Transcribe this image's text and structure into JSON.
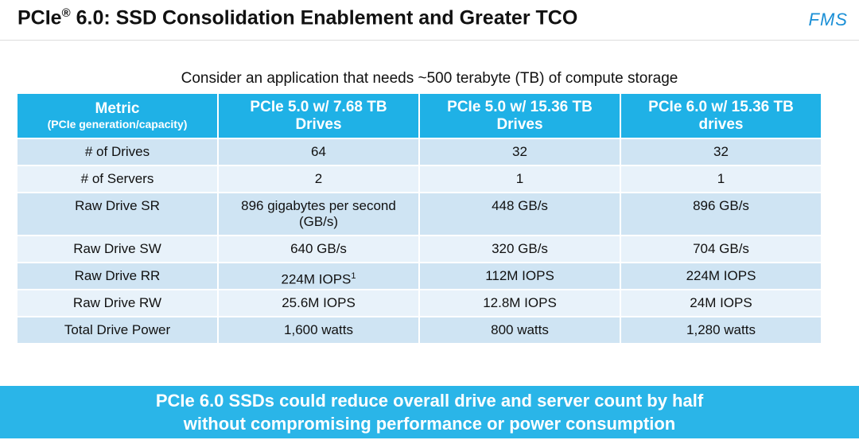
{
  "header": {
    "title": {
      "prefix": "PCIe",
      "mark": "®",
      "rest": " 6.0: SSD Consolidation Enablement and Greater TCO"
    },
    "logo": "FMS"
  },
  "subtitle": "Consider an application that needs ~500 terabyte (TB) of compute storage",
  "table": {
    "columns": [
      {
        "title": "Metric",
        "subtitle": "(PCIe generation/capacity)"
      },
      {
        "title": "PCIe 5.0 w/ 7.68 TB Drives"
      },
      {
        "title": "PCIe 5.0 w/ 15.36 TB Drives"
      },
      {
        "title": "PCIe 6.0 w/ 15.36 TB drives"
      }
    ],
    "rows": [
      [
        "# of Drives",
        "64",
        "32",
        "32"
      ],
      [
        "# of Servers",
        "2",
        "1",
        "1"
      ],
      [
        "Raw Drive SR",
        "896 gigabytes per second (GB/s)",
        "448 GB/s",
        "896 GB/s"
      ],
      [
        "Raw Drive SW",
        "640 GB/s",
        "320 GB/s",
        "704 GB/s"
      ],
      [
        "Raw Drive RR",
        {
          "text": "224M IOPS",
          "sup": "1"
        },
        "112M IOPS",
        "224M IOPS"
      ],
      [
        "Raw Drive RW",
        "25.6M IOPS",
        "12.8M IOPS",
        "24M IOPS"
      ],
      [
        "Total Drive Power",
        "1,600 watts",
        "800 watts",
        "1,280 watts"
      ]
    ]
  },
  "banner": {
    "lines": [
      "PCIe 6.0 SSDs could reduce overall drive and server count by half",
      "without compromising performance or power consumption"
    ]
  }
}
